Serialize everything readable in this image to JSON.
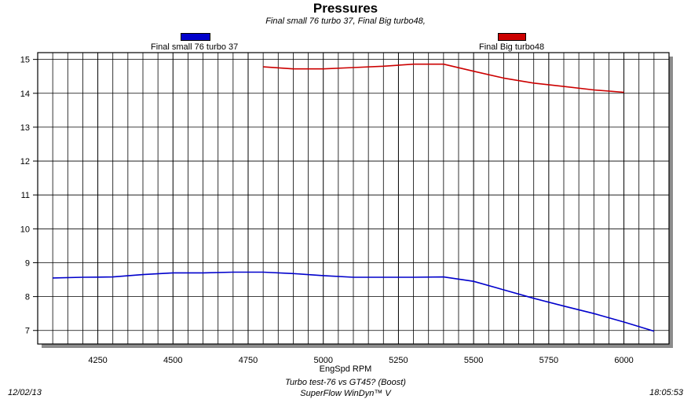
{
  "chart_data": {
    "type": "line",
    "title": "Pressures",
    "subtitle": "Final small 76 turbo 37, Final Big turbo48,",
    "xlabel": "EngSpd RPM",
    "ylabel": "",
    "xlim": [
      4050,
      6150
    ],
    "ylim": [
      6.6,
      15.2
    ],
    "x_ticks": [
      4250,
      4500,
      4750,
      5000,
      5250,
      5500,
      5750,
      6000
    ],
    "y_ticks": [
      7,
      8,
      9,
      10,
      11,
      12,
      13,
      14,
      15
    ],
    "grid": true,
    "legend": "top",
    "series": [
      {
        "name": "Final small 76 turbo 37",
        "color": "#0000cc",
        "x": [
          4100,
          4200,
          4300,
          4400,
          4500,
          4600,
          4700,
          4800,
          4900,
          5000,
          5100,
          5200,
          5300,
          5400,
          5500,
          5600,
          5700,
          5800,
          5900,
          6000,
          6100
        ],
        "values": [
          8.55,
          8.57,
          8.58,
          8.65,
          8.7,
          8.7,
          8.72,
          8.72,
          8.68,
          8.62,
          8.57,
          8.57,
          8.57,
          8.58,
          8.45,
          8.2,
          7.95,
          7.72,
          7.5,
          7.25,
          6.98
        ]
      },
      {
        "name": "Final Big turbo48",
        "color": "#cc0000",
        "x": [
          4800,
          4900,
          5000,
          5100,
          5200,
          5300,
          5400,
          5500,
          5600,
          5700,
          5800,
          5900,
          6000
        ],
        "values": [
          14.78,
          14.72,
          14.72,
          14.76,
          14.8,
          14.86,
          14.86,
          14.65,
          14.45,
          14.3,
          14.2,
          14.1,
          14.03
        ]
      }
    ]
  },
  "footer": {
    "test": "Turbo test-76 vs GT45? (Boost)",
    "app": "SuperFlow WinDyn™ V",
    "date": "12/02/13",
    "time": "18:05:53"
  }
}
